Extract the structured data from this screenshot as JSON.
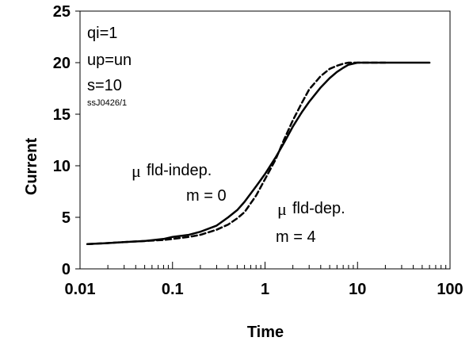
{
  "chart_data": {
    "type": "line",
    "xlabel": "Time",
    "ylabel": "Current",
    "xscale": "log",
    "xlim": [
      0.01,
      100
    ],
    "ylim": [
      0,
      25
    ],
    "x_ticks": [
      "0.01",
      "0.1",
      "1",
      "10",
      "100"
    ],
    "y_ticks": [
      "0",
      "5",
      "10",
      "15",
      "20",
      "25"
    ],
    "grid": false,
    "legend": "none",
    "annotations": {
      "params": [
        "qi=1",
        "up=un",
        "s=10"
      ],
      "run_id": "ssJ0426/1",
      "indep_mu": "μ",
      "indep_label": "fld-indep.",
      "indep_m": "m = 0",
      "dep_mu": "μ",
      "dep_label": "fld-dep.",
      "dep_m": "m = 4"
    },
    "series": [
      {
        "style": "solid",
        "color": "#000000",
        "x": [
          0.012,
          0.02,
          0.03,
          0.05,
          0.08,
          0.1,
          0.15,
          0.2,
          0.3,
          0.4,
          0.5,
          0.6,
          0.8,
          1.0,
          1.3,
          1.6,
          2.0,
          2.5,
          3.0,
          4.0,
          5.0,
          6.0,
          7.0,
          8.0,
          10,
          12,
          15,
          20,
          30,
          60
        ],
        "y": [
          2.4,
          2.5,
          2.6,
          2.7,
          2.9,
          3.1,
          3.3,
          3.6,
          4.2,
          5.0,
          5.7,
          6.5,
          8.0,
          9.2,
          10.8,
          12.2,
          13.8,
          15.2,
          16.2,
          17.6,
          18.5,
          19.1,
          19.5,
          19.8,
          20,
          20,
          20,
          20,
          20,
          20
        ]
      },
      {
        "style": "dashed",
        "color": "#000000",
        "x": [
          0.012,
          0.02,
          0.03,
          0.05,
          0.08,
          0.1,
          0.15,
          0.2,
          0.3,
          0.4,
          0.5,
          0.6,
          0.8,
          1.0,
          1.3,
          1.6,
          2.0,
          2.5,
          3.0,
          4.0,
          5.0,
          6.0,
          7.0,
          8.0,
          10,
          12,
          15,
          20
        ],
        "y": [
          2.4,
          2.5,
          2.6,
          2.7,
          2.8,
          2.9,
          3.1,
          3.3,
          3.8,
          4.3,
          4.9,
          5.5,
          7.1,
          8.7,
          10.6,
          12.5,
          14.4,
          16.1,
          17.4,
          18.7,
          19.4,
          19.7,
          19.9,
          20,
          20,
          20,
          20,
          20
        ]
      }
    ]
  }
}
